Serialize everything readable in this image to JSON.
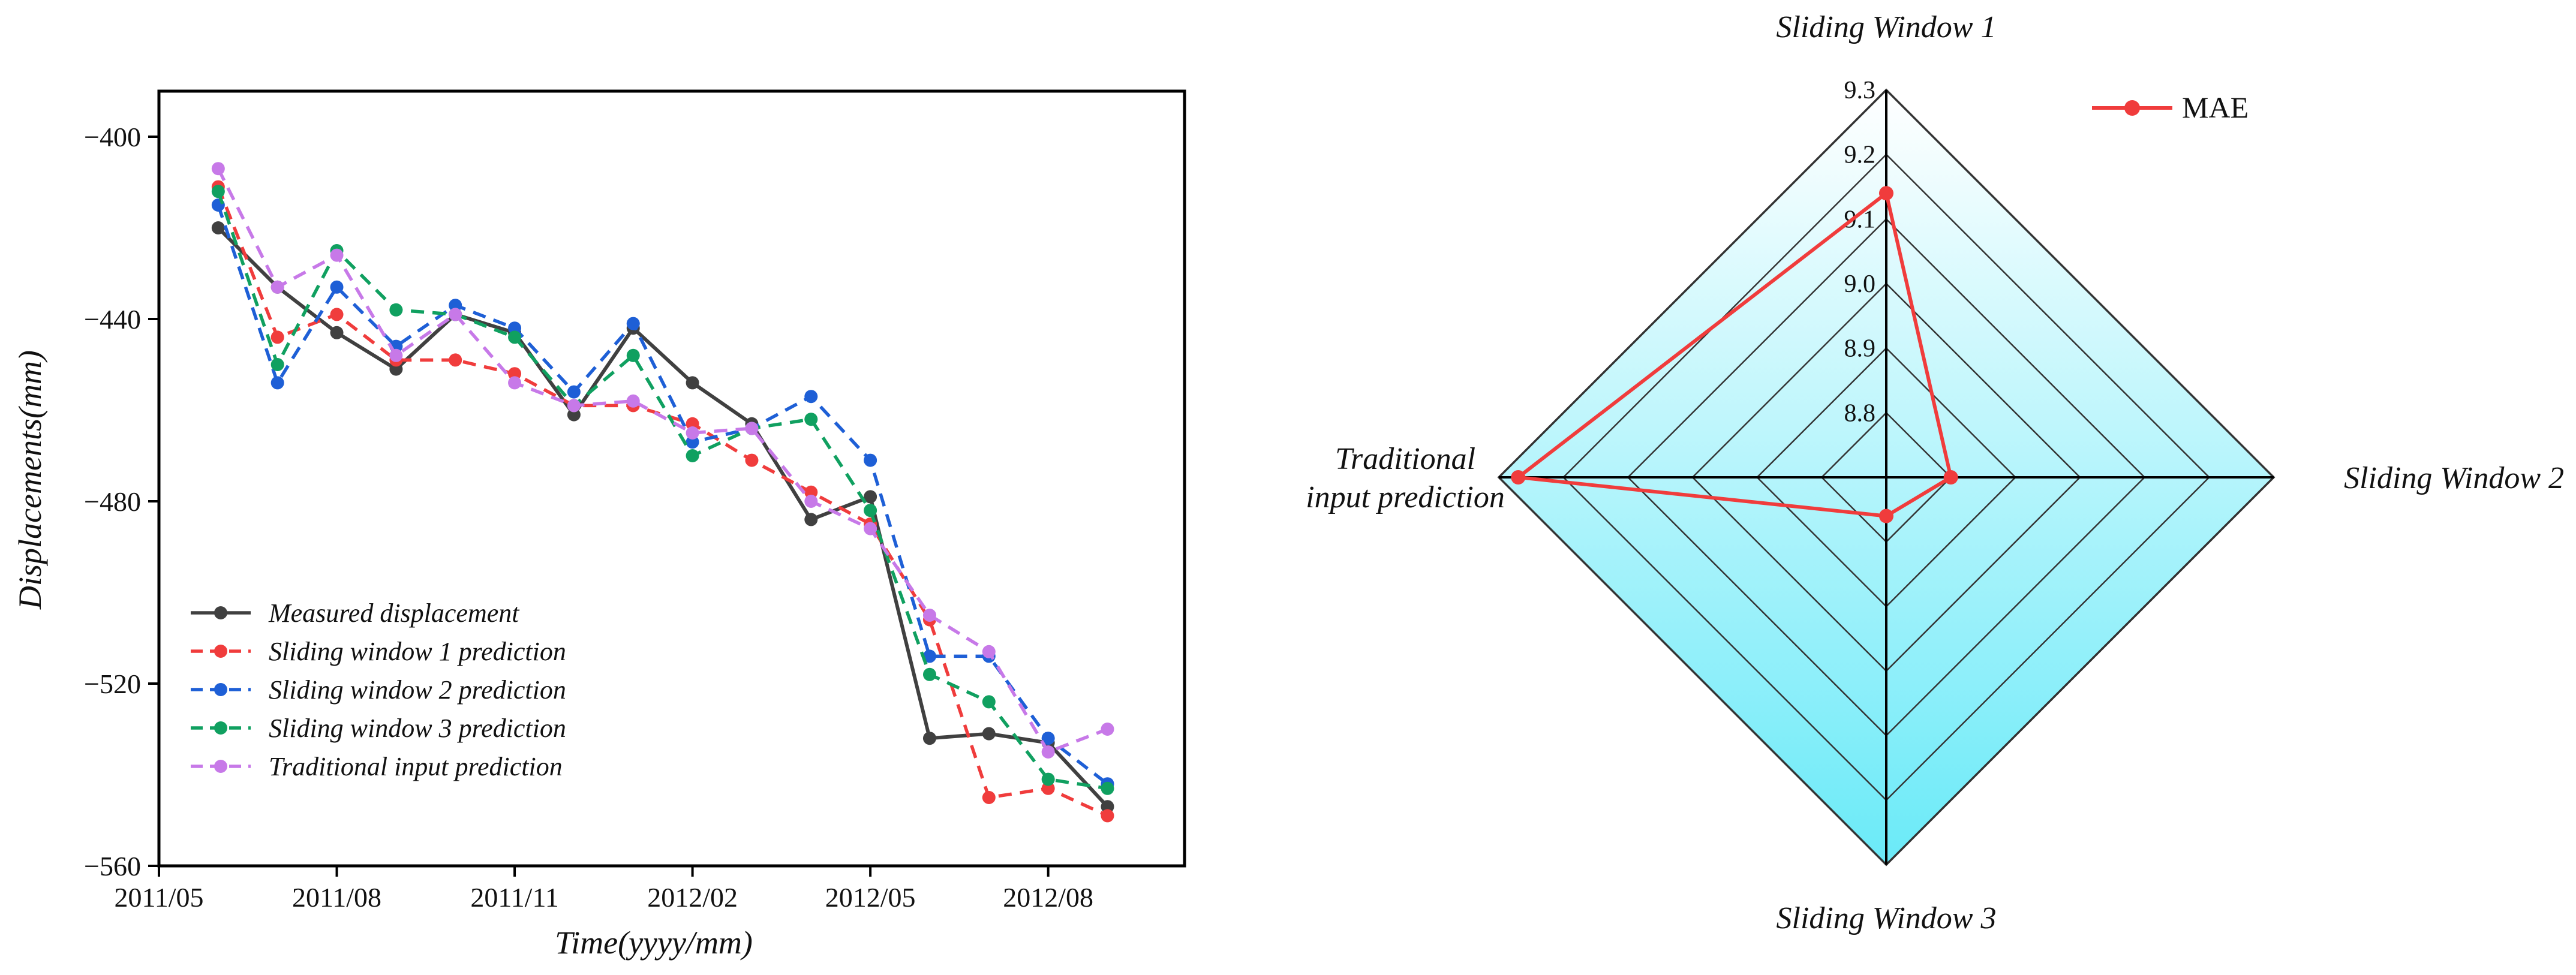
{
  "chart_data": [
    {
      "type": "line",
      "xlabel": "Time(yyyy/mm)",
      "ylabel": "Displacements(mm)",
      "x_ticks": [
        "2011/05",
        "2011/08",
        "2011/11",
        "2012/02",
        "2012/05",
        "2012/08"
      ],
      "y_ticks": [
        -400,
        -440,
        -480,
        -520,
        -560
      ],
      "ylim": [
        -560,
        -390
      ],
      "x_range_months": [
        0,
        17.3
      ],
      "x_month_index": [
        1,
        2,
        3,
        4,
        5,
        6,
        7,
        8,
        9,
        10,
        11,
        12,
        13,
        14,
        15,
        16
      ],
      "series": [
        {
          "name": "Measured displacement",
          "color": "#404040",
          "dash": "solid",
          "values": [
            -420,
            -433,
            -443,
            -451,
            -439,
            -443,
            -461,
            -442,
            -454,
            -463,
            -484,
            -479,
            -532,
            -531,
            -533,
            -547
          ]
        },
        {
          "name": "Sliding window 1 prediction",
          "color": "#f03c3c",
          "dash": "dashed",
          "values": [
            -411,
            -444,
            -439,
            -449,
            -449,
            -452,
            -459,
            -459,
            -463,
            -471,
            -478,
            -485,
            -506,
            -545,
            -543,
            -549
          ]
        },
        {
          "name": "Sliding window 2 prediction",
          "color": "#1e5fd6",
          "dash": "dashed",
          "values": [
            -415,
            -454,
            -433,
            -446,
            -437,
            -442,
            -456,
            -441,
            -467,
            -464,
            -457,
            -471,
            -514,
            -514,
            -532,
            -542
          ]
        },
        {
          "name": "Sliding window 3 prediction",
          "color": "#10a060",
          "dash": "dashed",
          "values": [
            -412,
            -450,
            -425,
            -438,
            -439,
            -444,
            -459,
            -448,
            -470,
            -464,
            -462,
            -482,
            -518,
            -524,
            -541,
            -543
          ]
        },
        {
          "name": "Traditional input prediction",
          "color": "#c779e8",
          "dash": "dashed",
          "values": [
            -407,
            -433,
            -426,
            -448,
            -439,
            -454,
            -459,
            -458,
            -465,
            -464,
            -480,
            -486,
            -505,
            -513,
            -535,
            -530
          ]
        }
      ]
    },
    {
      "type": "radar",
      "series_name": "MAE",
      "color": "#f03c3c",
      "axes": [
        "Sliding Window 1",
        "Sliding Window 2",
        "Sliding Window 3",
        "Traditional input prediction"
      ],
      "axis_label_lines": [
        [
          "Sliding Window 1"
        ],
        [
          "Sliding Window 2"
        ],
        [
          "Sliding Window 3"
        ],
        [
          "Traditional",
          "input prediction"
        ]
      ],
      "values": [
        9.14,
        8.8,
        8.76,
        9.27
      ],
      "range": [
        8.7,
        9.3
      ],
      "ticks": [
        "8.8",
        "8.9",
        "9.0",
        "9.1",
        "9.2",
        "9.3"
      ],
      "tick_values": [
        8.8,
        8.9,
        9.0,
        9.1,
        9.2,
        9.3
      ],
      "fill_gradient": [
        "#ffffff",
        "#6aeaf8"
      ]
    }
  ]
}
